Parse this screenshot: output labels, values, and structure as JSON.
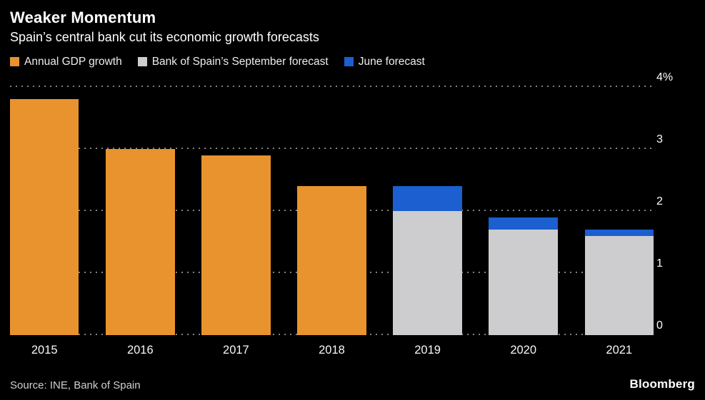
{
  "header": {
    "title": "Weaker Momentum",
    "subtitle": "Spain’s central bank cut its economic growth forecasts"
  },
  "legend": {
    "items": [
      {
        "label": "Annual GDP growth",
        "color": "#E9932E",
        "swatch": "orange-square"
      },
      {
        "label": "Bank of Spain’s September forecast",
        "color": "#CDCDCF",
        "swatch": "gray-square"
      },
      {
        "label": "June forecast",
        "color": "#1B5FD1",
        "swatch": "blue-square"
      }
    ]
  },
  "chart_data": {
    "type": "bar",
    "title": "Weaker Momentum",
    "subtitle": "Spain’s central bank cut its economic growth forecasts",
    "unit": "%",
    "categories": [
      "2015",
      "2016",
      "2017",
      "2018",
      "2019",
      "2020",
      "2021"
    ],
    "series": [
      {
        "name": "Annual GDP growth",
        "color": "#E9932E",
        "values": [
          3.8,
          3.0,
          2.9,
          2.4,
          null,
          null,
          null
        ]
      },
      {
        "name": "Bank of Spain’s September forecast",
        "color": "#CDCDCF",
        "values": [
          null,
          null,
          null,
          null,
          2.0,
          1.7,
          1.6
        ]
      },
      {
        "name": "June forecast",
        "color": "#1B5FD1",
        "values": [
          null,
          null,
          null,
          null,
          2.4,
          1.9,
          1.7
        ]
      }
    ],
    "stacking": "June forecast bar is drawn as a blue cap from the September forecast value up to the June forecast value",
    "ylim": [
      0,
      4
    ],
    "yticks": [
      {
        "value": 4,
        "label": "4%"
      },
      {
        "value": 3,
        "label": "3"
      },
      {
        "value": 2,
        "label": "2"
      },
      {
        "value": 1,
        "label": "1"
      },
      {
        "value": 0,
        "label": "0"
      }
    ],
    "grid": "horizontal dotted lines",
    "legend_position": "top",
    "y_axis_side": "right"
  },
  "footer": {
    "source": "Source: INE, Bank of Spain",
    "brand": "Bloomberg"
  },
  "colors": {
    "background": "#000000",
    "text": "#FFFFFF",
    "grid": "#828282",
    "orange": "#E9932E",
    "gray": "#CDCDCF",
    "blue": "#1B5FD1"
  }
}
